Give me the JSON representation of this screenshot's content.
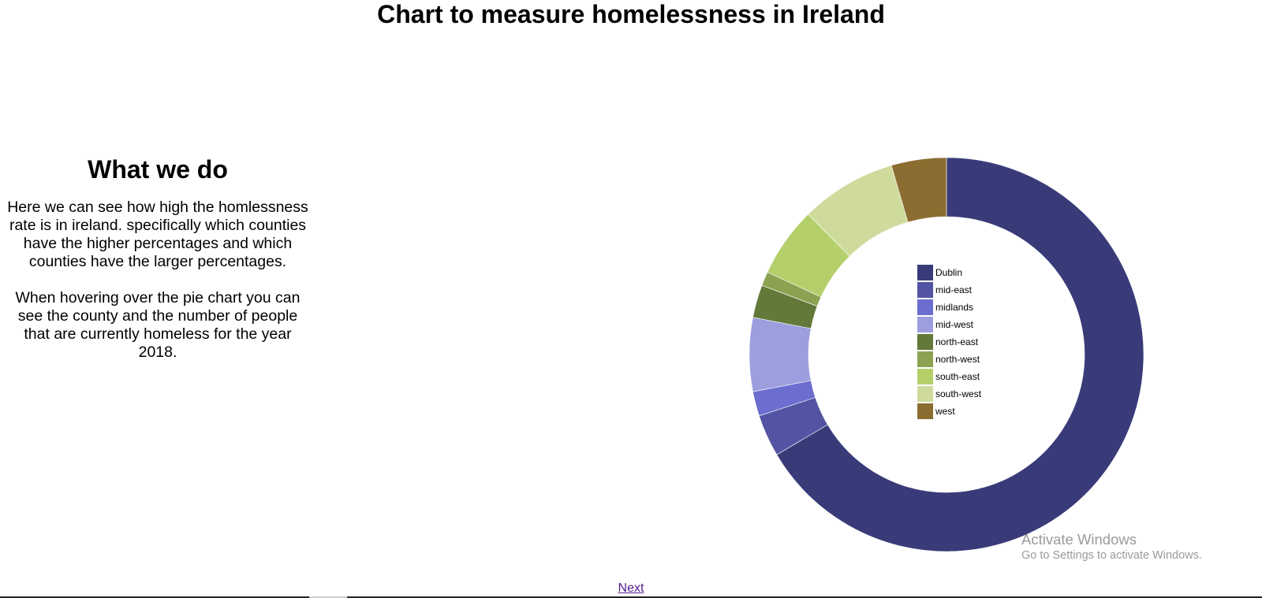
{
  "page": {
    "title": "Chart to measure homelessness in Ireland"
  },
  "side": {
    "heading": "What we do",
    "paragraph1": "Here we can see how high the homlessness rate is in ireland. specifically which counties have the higher percentages and which counties have the larger percentages.",
    "paragraph2": "When hovering over the pie chart you can see the county and the number of people that are currently homeless for the year 2018."
  },
  "nav": {
    "next_label": "Next"
  },
  "watermark": {
    "line1": "Activate Windows",
    "line2": "Go to Settings to activate Windows."
  },
  "chart_data": {
    "type": "pie",
    "donut": true,
    "legend_position": "center",
    "categories": [
      "Dublin",
      "mid-east",
      "midlands",
      "mid-west",
      "north-east",
      "north-west",
      "south-east",
      "south-west",
      "west"
    ],
    "values": [
      69.3,
      3.6,
      2.1,
      6.3,
      2.8,
      1.2,
      6.0,
      8.2,
      4.7
    ],
    "colors": [
      "#393b79",
      "#5254a3",
      "#6b6ecf",
      "#9c9ede",
      "#637939",
      "#8ca252",
      "#b5cf6b",
      "#cedb9c",
      "#8c6d31"
    ]
  }
}
